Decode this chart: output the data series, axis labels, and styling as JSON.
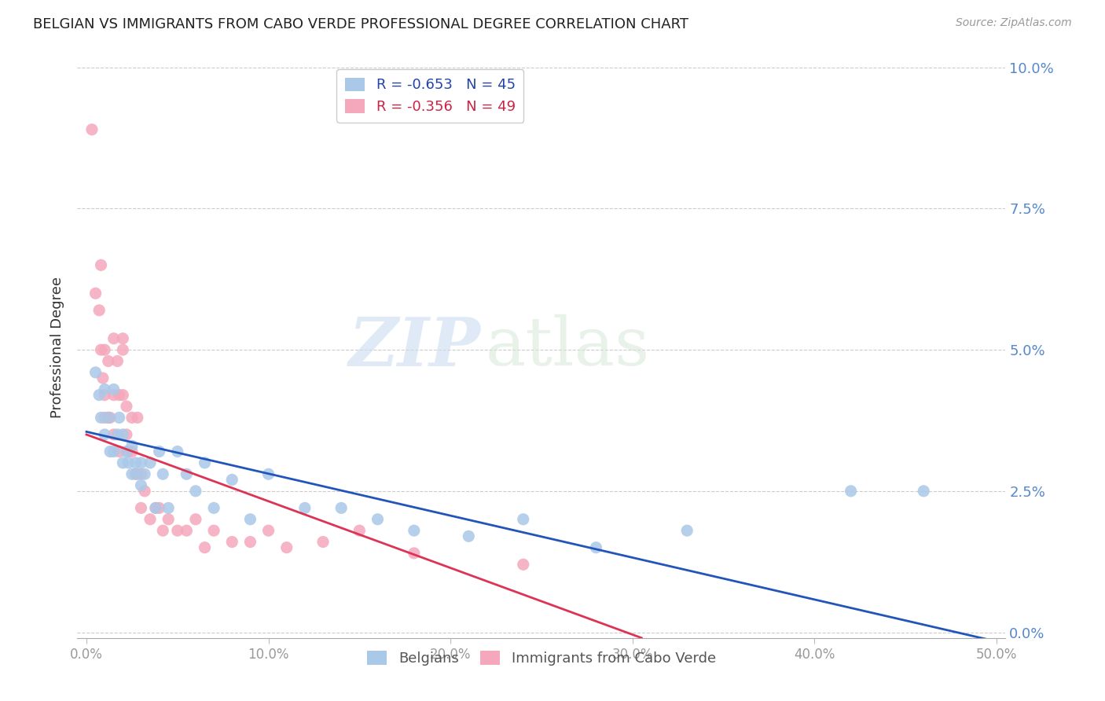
{
  "title": "BELGIAN VS IMMIGRANTS FROM CABO VERDE PROFESSIONAL DEGREE CORRELATION CHART",
  "source": "Source: ZipAtlas.com",
  "ylabel": "Professional Degree",
  "xlabel_vals": [
    0.0,
    0.1,
    0.2,
    0.3,
    0.4,
    0.5
  ],
  "xlabel_ticks": [
    "0.0%",
    "10.0%",
    "20.0%",
    "30.0%",
    "40.0%",
    "50.0%"
  ],
  "ylabel_vals": [
    0.0,
    0.025,
    0.05,
    0.075,
    0.1
  ],
  "ylabel_ticks": [
    "0.0%",
    "2.5%",
    "5.0%",
    "7.5%",
    "10.0%"
  ],
  "xlim": [
    -0.005,
    0.505
  ],
  "ylim": [
    -0.001,
    0.102
  ],
  "legend_blue_R": "-0.653",
  "legend_blue_N": "45",
  "legend_pink_R": "-0.356",
  "legend_pink_N": "49",
  "blue_color": "#aac8e8",
  "pink_color": "#f5a8bc",
  "blue_line_color": "#2255bb",
  "pink_line_color": "#dd3355",
  "watermark_zip": "ZIP",
  "watermark_atlas": "atlas",
  "blue_line_x0": 0.0,
  "blue_line_x1": 0.505,
  "blue_line_y0": 0.0355,
  "blue_line_y1": -0.002,
  "pink_line_x0": 0.0,
  "pink_line_x1": 0.305,
  "pink_line_y0": 0.035,
  "pink_line_y1": -0.001,
  "blue_scatter_x": [
    0.005,
    0.007,
    0.008,
    0.01,
    0.01,
    0.012,
    0.013,
    0.015,
    0.015,
    0.017,
    0.018,
    0.02,
    0.02,
    0.022,
    0.023,
    0.025,
    0.025,
    0.027,
    0.028,
    0.03,
    0.03,
    0.032,
    0.035,
    0.038,
    0.04,
    0.042,
    0.045,
    0.05,
    0.055,
    0.06,
    0.065,
    0.07,
    0.08,
    0.09,
    0.1,
    0.12,
    0.14,
    0.16,
    0.18,
    0.21,
    0.24,
    0.28,
    0.33,
    0.42,
    0.46
  ],
  "blue_scatter_y": [
    0.046,
    0.042,
    0.038,
    0.043,
    0.035,
    0.038,
    0.032,
    0.043,
    0.032,
    0.035,
    0.038,
    0.035,
    0.03,
    0.032,
    0.03,
    0.033,
    0.028,
    0.03,
    0.028,
    0.03,
    0.026,
    0.028,
    0.03,
    0.022,
    0.032,
    0.028,
    0.022,
    0.032,
    0.028,
    0.025,
    0.03,
    0.022,
    0.027,
    0.02,
    0.028,
    0.022,
    0.022,
    0.02,
    0.018,
    0.017,
    0.02,
    0.015,
    0.018,
    0.025,
    0.025
  ],
  "pink_scatter_x": [
    0.003,
    0.005,
    0.007,
    0.008,
    0.008,
    0.009,
    0.01,
    0.01,
    0.01,
    0.012,
    0.012,
    0.013,
    0.015,
    0.015,
    0.015,
    0.017,
    0.018,
    0.018,
    0.02,
    0.02,
    0.02,
    0.022,
    0.022,
    0.023,
    0.025,
    0.025,
    0.027,
    0.028,
    0.03,
    0.03,
    0.032,
    0.035,
    0.038,
    0.04,
    0.042,
    0.045,
    0.05,
    0.055,
    0.06,
    0.065,
    0.07,
    0.08,
    0.09,
    0.1,
    0.11,
    0.13,
    0.15,
    0.18,
    0.24
  ],
  "pink_scatter_y": [
    0.089,
    0.06,
    0.057,
    0.05,
    0.065,
    0.045,
    0.05,
    0.042,
    0.038,
    0.048,
    0.038,
    0.038,
    0.052,
    0.035,
    0.042,
    0.048,
    0.042,
    0.032,
    0.052,
    0.042,
    0.05,
    0.04,
    0.035,
    0.032,
    0.038,
    0.032,
    0.028,
    0.038,
    0.028,
    0.022,
    0.025,
    0.02,
    0.022,
    0.022,
    0.018,
    0.02,
    0.018,
    0.018,
    0.02,
    0.015,
    0.018,
    0.016,
    0.016,
    0.018,
    0.015,
    0.016,
    0.018,
    0.014,
    0.012
  ]
}
